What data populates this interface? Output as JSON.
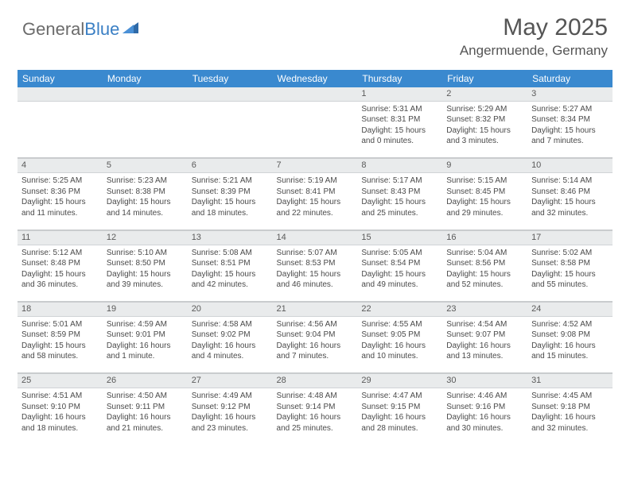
{
  "brand": {
    "part1": "General",
    "part2": "Blue"
  },
  "title": "May 2025",
  "location": "Angermuende, Germany",
  "days": [
    "Sunday",
    "Monday",
    "Tuesday",
    "Wednesday",
    "Thursday",
    "Friday",
    "Saturday"
  ],
  "colors": {
    "header_bg": "#3a89cf",
    "header_text": "#ffffff",
    "daynum_bg": "#e9ebec",
    "border": "#c9ccce",
    "text": "#4a4a4a",
    "brand_gray": "#6b6b6b",
    "brand_blue": "#3a7fc4"
  },
  "weeks": [
    [
      null,
      null,
      null,
      null,
      {
        "n": "1",
        "sr": "5:31 AM",
        "ss": "8:31 PM",
        "dl": "15 hours and 0 minutes."
      },
      {
        "n": "2",
        "sr": "5:29 AM",
        "ss": "8:32 PM",
        "dl": "15 hours and 3 minutes."
      },
      {
        "n": "3",
        "sr": "5:27 AM",
        "ss": "8:34 PM",
        "dl": "15 hours and 7 minutes."
      }
    ],
    [
      {
        "n": "4",
        "sr": "5:25 AM",
        "ss": "8:36 PM",
        "dl": "15 hours and 11 minutes."
      },
      {
        "n": "5",
        "sr": "5:23 AM",
        "ss": "8:38 PM",
        "dl": "15 hours and 14 minutes."
      },
      {
        "n": "6",
        "sr": "5:21 AM",
        "ss": "8:39 PM",
        "dl": "15 hours and 18 minutes."
      },
      {
        "n": "7",
        "sr": "5:19 AM",
        "ss": "8:41 PM",
        "dl": "15 hours and 22 minutes."
      },
      {
        "n": "8",
        "sr": "5:17 AM",
        "ss": "8:43 PM",
        "dl": "15 hours and 25 minutes."
      },
      {
        "n": "9",
        "sr": "5:15 AM",
        "ss": "8:45 PM",
        "dl": "15 hours and 29 minutes."
      },
      {
        "n": "10",
        "sr": "5:14 AM",
        "ss": "8:46 PM",
        "dl": "15 hours and 32 minutes."
      }
    ],
    [
      {
        "n": "11",
        "sr": "5:12 AM",
        "ss": "8:48 PM",
        "dl": "15 hours and 36 minutes."
      },
      {
        "n": "12",
        "sr": "5:10 AM",
        "ss": "8:50 PM",
        "dl": "15 hours and 39 minutes."
      },
      {
        "n": "13",
        "sr": "5:08 AM",
        "ss": "8:51 PM",
        "dl": "15 hours and 42 minutes."
      },
      {
        "n": "14",
        "sr": "5:07 AM",
        "ss": "8:53 PM",
        "dl": "15 hours and 46 minutes."
      },
      {
        "n": "15",
        "sr": "5:05 AM",
        "ss": "8:54 PM",
        "dl": "15 hours and 49 minutes."
      },
      {
        "n": "16",
        "sr": "5:04 AM",
        "ss": "8:56 PM",
        "dl": "15 hours and 52 minutes."
      },
      {
        "n": "17",
        "sr": "5:02 AM",
        "ss": "8:58 PM",
        "dl": "15 hours and 55 minutes."
      }
    ],
    [
      {
        "n": "18",
        "sr": "5:01 AM",
        "ss": "8:59 PM",
        "dl": "15 hours and 58 minutes."
      },
      {
        "n": "19",
        "sr": "4:59 AM",
        "ss": "9:01 PM",
        "dl": "16 hours and 1 minute."
      },
      {
        "n": "20",
        "sr": "4:58 AM",
        "ss": "9:02 PM",
        "dl": "16 hours and 4 minutes."
      },
      {
        "n": "21",
        "sr": "4:56 AM",
        "ss": "9:04 PM",
        "dl": "16 hours and 7 minutes."
      },
      {
        "n": "22",
        "sr": "4:55 AM",
        "ss": "9:05 PM",
        "dl": "16 hours and 10 minutes."
      },
      {
        "n": "23",
        "sr": "4:54 AM",
        "ss": "9:07 PM",
        "dl": "16 hours and 13 minutes."
      },
      {
        "n": "24",
        "sr": "4:52 AM",
        "ss": "9:08 PM",
        "dl": "16 hours and 15 minutes."
      }
    ],
    [
      {
        "n": "25",
        "sr": "4:51 AM",
        "ss": "9:10 PM",
        "dl": "16 hours and 18 minutes."
      },
      {
        "n": "26",
        "sr": "4:50 AM",
        "ss": "9:11 PM",
        "dl": "16 hours and 21 minutes."
      },
      {
        "n": "27",
        "sr": "4:49 AM",
        "ss": "9:12 PM",
        "dl": "16 hours and 23 minutes."
      },
      {
        "n": "28",
        "sr": "4:48 AM",
        "ss": "9:14 PM",
        "dl": "16 hours and 25 minutes."
      },
      {
        "n": "29",
        "sr": "4:47 AM",
        "ss": "9:15 PM",
        "dl": "16 hours and 28 minutes."
      },
      {
        "n": "30",
        "sr": "4:46 AM",
        "ss": "9:16 PM",
        "dl": "16 hours and 30 minutes."
      },
      {
        "n": "31",
        "sr": "4:45 AM",
        "ss": "9:18 PM",
        "dl": "16 hours and 32 minutes."
      }
    ]
  ],
  "labels": {
    "sunrise": "Sunrise: ",
    "sunset": "Sunset: ",
    "daylight": "Daylight: "
  }
}
